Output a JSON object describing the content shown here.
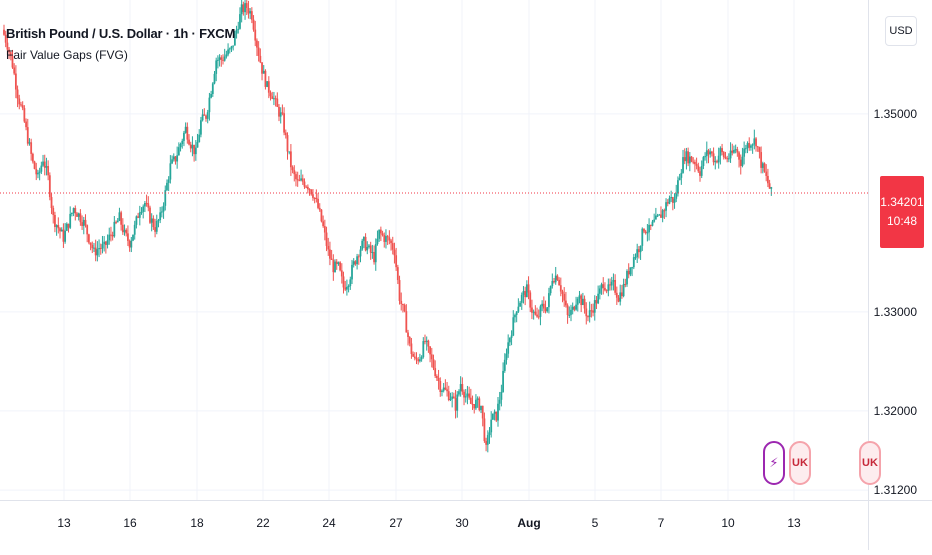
{
  "header": {
    "title": "British Pound / U.S. Dollar · 1h · FXCM",
    "indicator": "Fair Value Gaps (FVG)"
  },
  "currency_button": "USD",
  "price_badge": {
    "price": "1.34201",
    "countdown": "10:48",
    "color": "#f23645"
  },
  "event_icons": [
    {
      "name": "flash-icon",
      "glyph": "⚡"
    },
    {
      "name": "uk-us-flag-icon",
      "glyph": "UK"
    },
    {
      "name": "uk-us-flag-icon-2",
      "glyph": "UK"
    }
  ],
  "colors": {
    "up": "#26a69a",
    "down": "#ef5350",
    "grid": "#f0f3fa",
    "current_line": "#f23645"
  },
  "chart_data": {
    "type": "candlestick",
    "ylim": [
      1.311,
      1.3615
    ],
    "y_ticks": [
      "1.35000",
      "1.33000",
      "1.32000",
      "1.31200"
    ],
    "y_tick_values": [
      1.35,
      1.33,
      1.32,
      1.312
    ],
    "x_ticks": [
      {
        "label": "13",
        "bold": false
      },
      {
        "label": "16",
        "bold": false
      },
      {
        "label": "18",
        "bold": false
      },
      {
        "label": "22",
        "bold": false
      },
      {
        "label": "24",
        "bold": false
      },
      {
        "label": "27",
        "bold": false
      },
      {
        "label": "30",
        "bold": false
      },
      {
        "label": "Aug",
        "bold": true
      },
      {
        "label": "5",
        "bold": false
      },
      {
        "label": "7",
        "bold": false
      },
      {
        "label": "10",
        "bold": false
      },
      {
        "label": "13",
        "bold": false
      }
    ],
    "current_price": 1.34201,
    "close_path": [
      1.3585,
      1.357,
      1.355,
      1.352,
      1.35,
      1.3475,
      1.345,
      1.3435,
      1.3455,
      1.3435,
      1.3395,
      1.3385,
      1.3375,
      1.339,
      1.3405,
      1.3398,
      1.339,
      1.3375,
      1.336,
      1.3365,
      1.3365,
      1.3375,
      1.3385,
      1.3395,
      1.3378,
      1.337,
      1.3385,
      1.3405,
      1.341,
      1.3395,
      1.3385,
      1.3395,
      1.342,
      1.3447,
      1.3455,
      1.347,
      1.3485,
      1.347,
      1.346,
      1.3492,
      1.3498,
      1.3525,
      1.3555,
      1.3555,
      1.356,
      1.3565,
      1.3585,
      1.3605,
      1.3608,
      1.36,
      1.357,
      1.3545,
      1.3527,
      1.352,
      1.3505,
      1.3495,
      1.3465,
      1.344,
      1.343,
      1.3432,
      1.3428,
      1.342,
      1.3405,
      1.3385,
      1.336,
      1.3345,
      1.3345,
      1.3325,
      1.3332,
      1.3348,
      1.3362,
      1.337,
      1.3362,
      1.3355,
      1.338,
      1.3375,
      1.3372,
      1.3362,
      1.3315,
      1.3295,
      1.3265,
      1.325,
      1.3255,
      1.327,
      1.3255,
      1.324,
      1.3225,
      1.322,
      1.3215,
      1.3205,
      1.3228,
      1.3215,
      1.3207,
      1.3208,
      1.3205,
      1.316,
      1.3192,
      1.3195,
      1.3222,
      1.3262,
      1.3282,
      1.3305,
      1.3315,
      1.3322,
      1.3302,
      1.3292,
      1.3305,
      1.3305,
      1.3335,
      1.3337,
      1.3318,
      1.3295,
      1.3302,
      1.3318,
      1.3308,
      1.3295,
      1.3305,
      1.3315,
      1.333,
      1.3322,
      1.3327,
      1.3315,
      1.3325,
      1.3342,
      1.3355,
      1.3365,
      1.3385,
      1.3382,
      1.339,
      1.3395,
      1.3405,
      1.3415,
      1.3412,
      1.344,
      1.3458,
      1.3455,
      1.3452,
      1.3442,
      1.3458,
      1.3462,
      1.3452,
      1.3462,
      1.3455,
      1.3457,
      1.3465,
      1.3452,
      1.3468,
      1.3472,
      1.3473,
      1.345,
      1.3435,
      1.342
    ]
  }
}
